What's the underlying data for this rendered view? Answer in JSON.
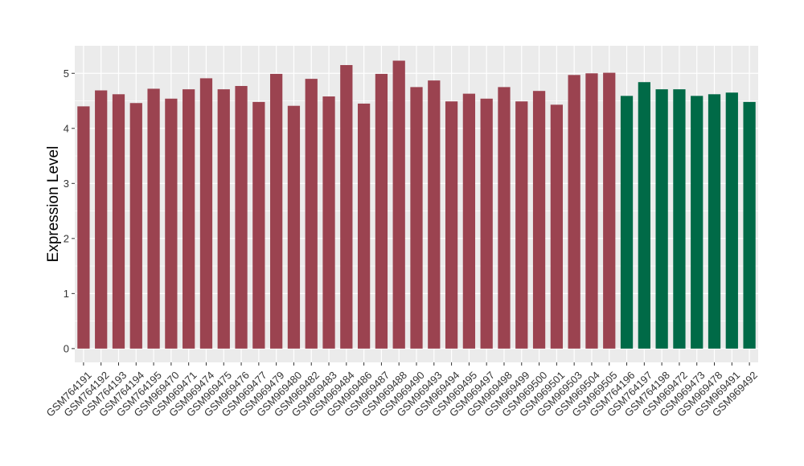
{
  "chart_data": {
    "type": "bar",
    "title": "",
    "xlabel": "",
    "ylabel": "Expression Level",
    "ylim": [
      -0.25,
      5.5
    ],
    "yticks": [
      0,
      1,
      2,
      3,
      4,
      5
    ],
    "grid": true,
    "legend": "none",
    "colors": {
      "group1": "#9b4350",
      "group2": "#006a47",
      "panel_background": "#ebebeb",
      "grid": "#ffffff"
    },
    "categories": [
      "GSM764191",
      "GSM764192",
      "GSM764193",
      "GSM764194",
      "GSM764195",
      "GSM969470",
      "GSM969471",
      "GSM969474",
      "GSM969475",
      "GSM969476",
      "GSM969477",
      "GSM969479",
      "GSM969480",
      "GSM969482",
      "GSM969483",
      "GSM969484",
      "GSM969486",
      "GSM969487",
      "GSM969488",
      "GSM969490",
      "GSM969493",
      "GSM969494",
      "GSM969495",
      "GSM969497",
      "GSM969498",
      "GSM969499",
      "GSM969500",
      "GSM969501",
      "GSM969503",
      "GSM969504",
      "GSM969505",
      "GSM764196",
      "GSM764197",
      "GSM764198",
      "GSM969472",
      "GSM969473",
      "GSM969478",
      "GSM969491",
      "GSM969492"
    ],
    "values": [
      4.4,
      4.69,
      4.62,
      4.46,
      4.72,
      4.54,
      4.71,
      4.91,
      4.71,
      4.77,
      4.48,
      4.99,
      4.41,
      4.9,
      4.58,
      5.15,
      4.45,
      4.99,
      5.23,
      4.75,
      4.87,
      4.49,
      4.63,
      4.54,
      4.75,
      4.49,
      4.68,
      4.43,
      4.97,
      5.0,
      5.01,
      4.59,
      4.84,
      4.71,
      4.71,
      4.59,
      4.62,
      4.65,
      4.48
    ],
    "groups": [
      1,
      1,
      1,
      1,
      1,
      1,
      1,
      1,
      1,
      1,
      1,
      1,
      1,
      1,
      1,
      1,
      1,
      1,
      1,
      1,
      1,
      1,
      1,
      1,
      1,
      1,
      1,
      1,
      1,
      1,
      1,
      2,
      2,
      2,
      2,
      2,
      2,
      2,
      2
    ]
  }
}
